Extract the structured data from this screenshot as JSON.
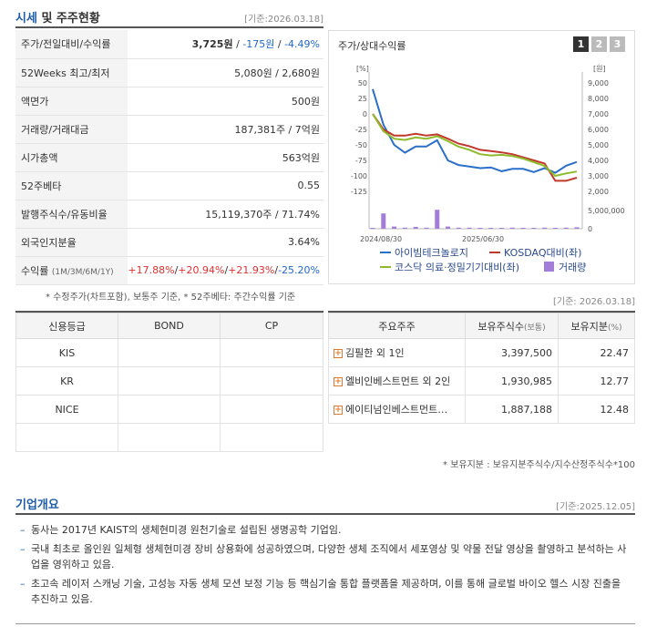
{
  "header": {
    "title_a": "시세",
    "title_b": " 및 주주현황",
    "stamp": "[기준:2026.03.18]"
  },
  "quote_rows": [
    {
      "label": "주가/전일대비/수익률",
      "v1": "3,725원",
      "sep1": " / ",
      "v2": "-175원",
      "sep2": " / ",
      "v3": "-4.49%"
    },
    {
      "label": "52Weeks 최고/최저",
      "value": "5,080원 / 2,680원"
    },
    {
      "label": "액면가",
      "value": "500원"
    },
    {
      "label": "거래량/거래대금",
      "value": "187,381주 / 7억원"
    },
    {
      "label": "시가총액",
      "value": "563억원"
    },
    {
      "label": "52주베타",
      "value": "0.55"
    },
    {
      "label": "발행주식수/유동비율",
      "value": "15,119,370주 / 71.74%"
    },
    {
      "label": "외국인지분율",
      "value": "3.64%"
    }
  ],
  "return_row": {
    "label": "수익률",
    "label_sub": "(1M/3M/6M/1Y)",
    "r1": "+17.88%",
    "r2": "+20.94%",
    "r3": "+21.93%",
    "r4": "-25.20%",
    "sep": "/"
  },
  "quote_note": "* 수정주가(차트포함), 보통주 기준, * 52주베타: 주간수익률 기준",
  "chart_panel": {
    "title": "주가/상대수익률",
    "pager": [
      "1",
      "2",
      "3"
    ],
    "left_unit": "[%]",
    "right_unit": "[원]"
  },
  "chart_data": {
    "type": "line",
    "left_ticks": [
      "50",
      "25",
      "0",
      "-25",
      "-50",
      "-75",
      "-100",
      "-125"
    ],
    "right_ticks": [
      "9,000",
      "8,000",
      "7,000",
      "6,000",
      "5,000",
      "4,000",
      "3,000",
      "2,000"
    ],
    "volume_ticks": [
      "5,000,000",
      "0"
    ],
    "x_ticks": [
      "2024/08/30",
      "2025/06/30"
    ],
    "ylim_left": [
      -125,
      50
    ],
    "ylim_right": [
      2000,
      9000
    ],
    "series": [
      {
        "name": "아이빔테크놀로지",
        "color": "#2a6fc9",
        "axis": "right",
        "values": [
          8600,
          6300,
          5000,
          4500,
          4900,
          4900,
          5300,
          4000,
          3700,
          3600,
          3500,
          3550,
          3300,
          3450,
          3450,
          3250,
          3500,
          3200,
          3650,
          3900
        ]
      },
      {
        "name": "KOSDAQ대비(좌)",
        "color": "#c0392b",
        "axis": "left",
        "values": [
          0,
          -25,
          -35,
          -35,
          -32,
          -35,
          -33,
          -40,
          -48,
          -52,
          -58,
          -60,
          -62,
          -65,
          -70,
          -75,
          -80,
          -108,
          -108,
          -103
        ]
      },
      {
        "name": "코스닥 의료·정밀기기대비(좌)",
        "color": "#8dbb2c",
        "axis": "left",
        "values": [
          0,
          -28,
          -40,
          -42,
          -38,
          -40,
          -36,
          -44,
          -53,
          -58,
          -65,
          -67,
          -66,
          -68,
          -72,
          -78,
          -84,
          -100,
          -96,
          -93
        ]
      }
    ],
    "volume": {
      "name": "거래량",
      "color": "#a37ed8",
      "values": [
        0,
        4200000,
        600000,
        300000,
        500000,
        300000,
        5200000,
        600000,
        300000,
        300000,
        200000,
        250000,
        200000,
        300000,
        200000,
        250000,
        300000,
        200000,
        300000,
        400000
      ],
      "max": 5000000
    }
  },
  "credit": {
    "stamp": "[기준: 2026.03.18]",
    "headers": [
      "신용등급",
      "BOND",
      "CP"
    ],
    "rows": [
      [
        "KIS",
        "",
        ""
      ],
      [
        "KR",
        "",
        ""
      ],
      [
        "NICE",
        "",
        ""
      ],
      [
        "",
        "",
        ""
      ]
    ]
  },
  "holders": {
    "headers": [
      "주요주주",
      "보유주식수",
      "(보통)",
      "보유지분",
      "(%)"
    ],
    "rows": [
      {
        "name": "김필한 외 1인",
        "shares": "3,397,500",
        "pct": "22.47"
      },
      {
        "name": "엘비인베스트먼트 외 2인",
        "shares": "1,930,985",
        "pct": "12.77"
      },
      {
        "name": "에이티넘인베스트먼트…",
        "shares": "1,887,188",
        "pct": "12.48"
      }
    ],
    "note": "* 보유지분 : 보유지분주식수/지수산정주식수*100"
  },
  "overview": {
    "title": "기업개요",
    "stamp": "[기준:2025.12.05]",
    "items": [
      "동사는 2017년 KAIST의 생체현미경 원천기술로 설립된 생명공학 기업임.",
      "국내 최초로 올인원 일체형 생체현미경 장비 상용화에 성공하였으며, 다양한 생체 조직에서 세포영상 및 약물 전달 영상을 촬영하고 분석하는 사업을 영위하고 있음.",
      "초고속 레이저 스캐닝 기술, 고성능 자동 생체 모션 보정 기능 등 핵심기술 통합 플랫폼을 제공하며, 이를 통해 글로벌 바이오 헬스 시장 진출을 추진하고 있음."
    ]
  }
}
